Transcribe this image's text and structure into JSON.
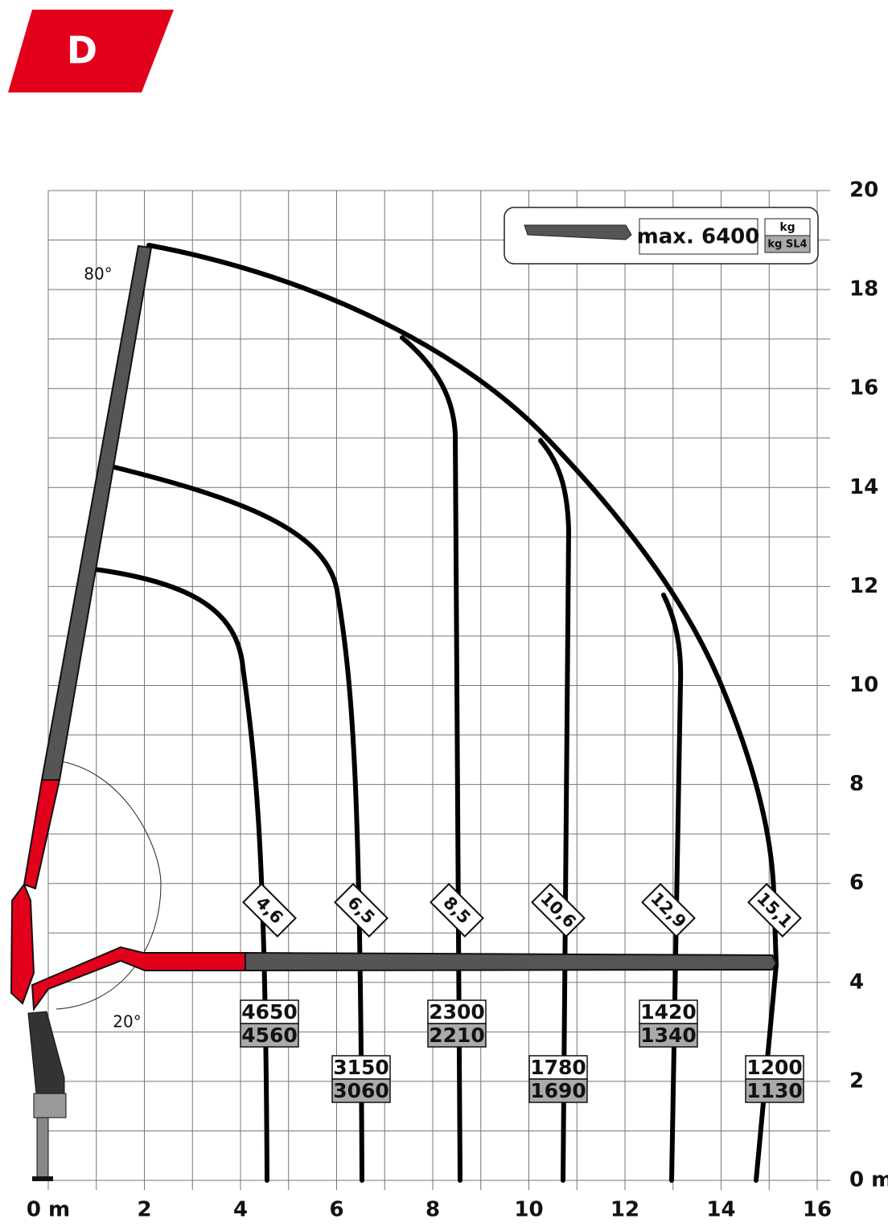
{
  "badge": "D",
  "legend": {
    "max_label": "max. 6400",
    "unit": "kg",
    "unit_sl4": "kg SL4"
  },
  "angles": {
    "upper": "80°",
    "lower": "20°"
  },
  "x_axis": {
    "ticks": [
      {
        "value": 0,
        "label": "0 m"
      },
      2,
      4,
      6,
      8,
      10,
      12,
      14,
      16
    ]
  },
  "y_axis": {
    "ticks": [
      {
        "value": 0,
        "label": "0 m"
      },
      2,
      4,
      6,
      8,
      10,
      12,
      14,
      16,
      18,
      20
    ]
  },
  "reaches": [
    {
      "reach": "4,6",
      "load": 4650,
      "load_sl4": 4560
    },
    {
      "reach": "6,5",
      "load": 3150,
      "load_sl4": 3060
    },
    {
      "reach": "8,5",
      "load": 2300,
      "load_sl4": 2210
    },
    {
      "reach": "10,6",
      "load": 1780,
      "load_sl4": 1690
    },
    {
      "reach": "12,9",
      "load": 1420,
      "load_sl4": 1340
    },
    {
      "reach": "15,1",
      "load": 1200,
      "load_sl4": 1130
    }
  ]
}
